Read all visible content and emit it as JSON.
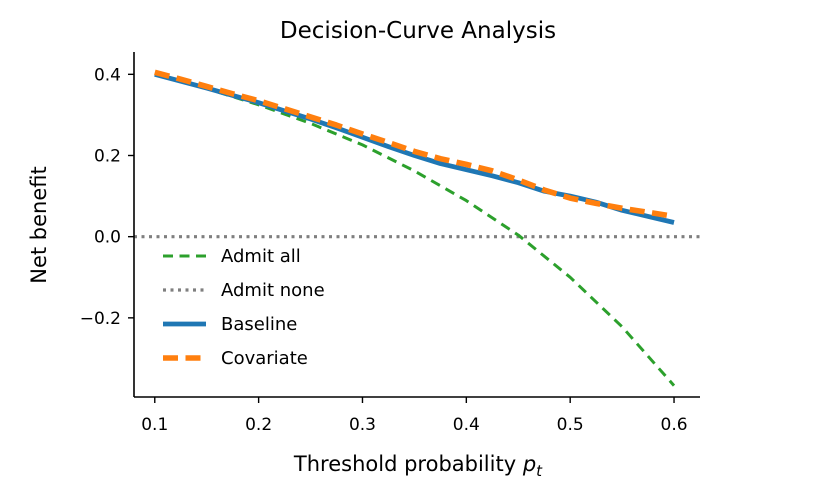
{
  "chart_data": {
    "type": "line",
    "title": "Decision-Curve Analysis",
    "xlabel": "Threshold probability",
    "xlabel_var": "p",
    "xlabel_sub": "t",
    "ylabel": "Net benefit",
    "xlim": [
      0.08,
      0.625
    ],
    "ylim": [
      -0.395,
      0.455
    ],
    "xticks": [
      0.1,
      0.2,
      0.3,
      0.4,
      0.5,
      0.6
    ],
    "xtick_labels": [
      "0.1",
      "0.2",
      "0.3",
      "0.4",
      "0.5",
      "0.6"
    ],
    "yticks": [
      -0.2,
      0.0,
      0.2,
      0.4
    ],
    "ytick_labels": [
      "−0.2",
      "0.0",
      "0.2",
      "0.4"
    ],
    "grid": false,
    "legend_position": "lower-left",
    "series": [
      {
        "name": "Admit all",
        "style": "dashed",
        "color": "#2ca02c",
        "x": [
          0.1,
          0.15,
          0.2,
          0.25,
          0.3,
          0.35,
          0.4,
          0.45,
          0.5,
          0.55,
          0.6
        ],
        "y": [
          0.4,
          0.365,
          0.325,
          0.279,
          0.226,
          0.162,
          0.089,
          0.004,
          -0.1,
          -0.222,
          -0.367
        ]
      },
      {
        "name": "Admit none",
        "style": "dotted",
        "color": "#7f7f7f",
        "x": [
          0.1,
          0.6
        ],
        "y": [
          0.0,
          0.0
        ]
      },
      {
        "name": "Baseline",
        "style": "solid",
        "color": "#1f77b4",
        "x": [
          0.1,
          0.125,
          0.15,
          0.175,
          0.2,
          0.225,
          0.25,
          0.275,
          0.3,
          0.325,
          0.35,
          0.375,
          0.4,
          0.425,
          0.45,
          0.475,
          0.5,
          0.525,
          0.55,
          0.575,
          0.6
        ],
        "y": [
          0.4,
          0.383,
          0.366,
          0.348,
          0.33,
          0.31,
          0.29,
          0.268,
          0.245,
          0.222,
          0.2,
          0.18,
          0.165,
          0.15,
          0.133,
          0.112,
          0.1,
          0.085,
          0.065,
          0.05,
          0.035
        ]
      },
      {
        "name": "Covariate",
        "style": "dashed",
        "color": "#ff7f0e",
        "x": [
          0.1,
          0.125,
          0.15,
          0.175,
          0.2,
          0.225,
          0.25,
          0.275,
          0.3,
          0.325,
          0.35,
          0.375,
          0.4,
          0.425,
          0.45,
          0.475,
          0.5,
          0.525,
          0.55,
          0.575,
          0.6
        ],
        "y": [
          0.405,
          0.388,
          0.37,
          0.352,
          0.335,
          0.315,
          0.295,
          0.275,
          0.253,
          0.232,
          0.21,
          0.192,
          0.178,
          0.162,
          0.14,
          0.115,
          0.095,
          0.082,
          0.07,
          0.06,
          0.05
        ]
      }
    ]
  }
}
